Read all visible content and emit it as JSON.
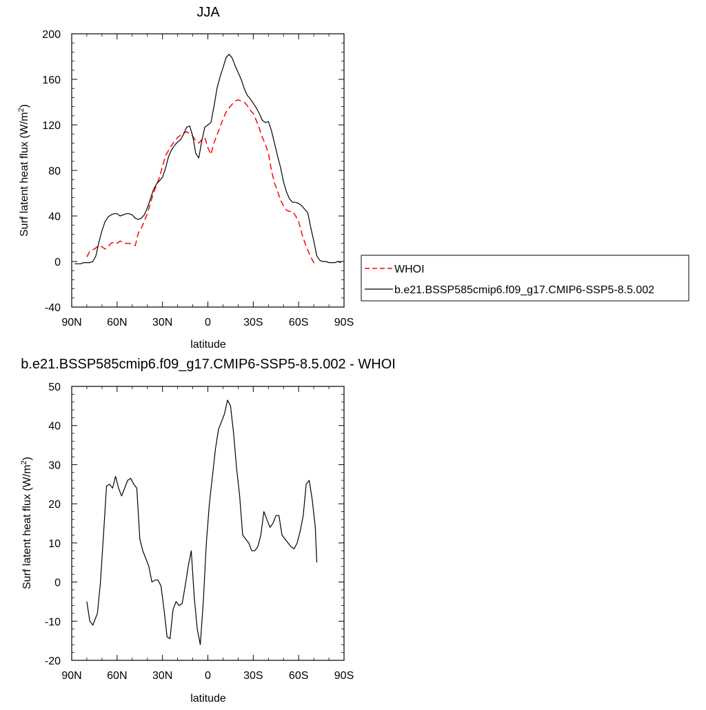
{
  "chart_data": [
    {
      "type": "line",
      "title": "JJA",
      "xlabel": "latitude",
      "ylabel": "Surf latent heat flux (W/m",
      "ylabel_sup": "2",
      "ylabel_close": ")",
      "xlim": [
        90,
        -90
      ],
      "ylim": [
        -40,
        200
      ],
      "x_ticks": [
        90,
        60,
        30,
        0,
        -30,
        -60,
        -90
      ],
      "x_tick_labels": [
        "90N",
        "60N",
        "30N",
        "0",
        "30S",
        "60S",
        "90S"
      ],
      "y_ticks": [
        -40,
        0,
        40,
        80,
        120,
        160,
        200
      ],
      "y_tick_labels": [
        "-40",
        "0",
        "40",
        "80",
        "120",
        "160",
        "200"
      ],
      "legend_position": "right",
      "series": [
        {
          "name": "WHOI",
          "color": "#ff0000",
          "dash": "dashed",
          "x": [
            80,
            78,
            75,
            72,
            70,
            68,
            66,
            64,
            62,
            60,
            58,
            55,
            52,
            48,
            46,
            44,
            40,
            36,
            32,
            28,
            24,
            20,
            18,
            16,
            14,
            12,
            10,
            8,
            6,
            4,
            2,
            0,
            -2,
            -4,
            -6,
            -8,
            -10,
            -12,
            -14,
            -16,
            -18,
            -20,
            -22,
            -24,
            -26,
            -28,
            -30,
            -32,
            -34,
            -36,
            -38,
            -40,
            -42,
            -44,
            -46,
            -48,
            -50,
            -52,
            -54,
            -56,
            -58,
            -60,
            -62,
            -64,
            -66,
            -68,
            -70,
            -72
          ],
          "y": [
            4,
            9,
            11,
            14,
            13,
            11,
            13,
            16,
            17,
            16,
            18,
            16,
            16,
            14,
            25,
            29,
            42,
            60,
            74,
            93,
            102,
            109,
            111,
            113,
            114,
            112,
            110,
            106,
            104,
            107,
            109,
            100,
            94,
            104,
            111,
            118,
            125,
            131,
            135,
            138,
            141,
            142,
            141,
            140,
            137,
            133,
            130,
            124,
            117,
            109,
            103,
            95,
            80,
            69,
            62,
            54,
            49,
            45,
            44,
            44,
            40,
            35,
            25,
            17,
            10,
            4,
            -1,
            -2
          ]
        },
        {
          "name": "b.e21.BSSP585cmip6.f09_g17.CMIP6-SSP5-8.5.002",
          "color": "#000000",
          "dash": "solid",
          "x": [
            88,
            86,
            84,
            82,
            80,
            78,
            76,
            74,
            72,
            70,
            68,
            66,
            64,
            62,
            60,
            58,
            56,
            54,
            52,
            50,
            48,
            46,
            44,
            42,
            40,
            38,
            36,
            34,
            32,
            30,
            28,
            26,
            24,
            22,
            20,
            18,
            16,
            14,
            12,
            10,
            8,
            6,
            4,
            2,
            0,
            -2,
            -4,
            -6,
            -8,
            -10,
            -12,
            -14,
            -16,
            -18,
            -20,
            -22,
            -24,
            -26,
            -28,
            -30,
            -32,
            -34,
            -36,
            -38,
            -40,
            -42,
            -44,
            -46,
            -48,
            -50,
            -52,
            -54,
            -56,
            -58,
            -60,
            -62,
            -64,
            -66,
            -68,
            -70,
            -72,
            -74,
            -76,
            -78,
            -80,
            -82,
            -84,
            -86,
            -88
          ],
          "y": [
            -2,
            -2,
            -2,
            -1,
            -1,
            -1,
            0,
            5,
            17,
            27,
            35,
            39,
            41,
            42,
            42,
            40,
            41,
            42,
            42,
            41,
            38,
            37,
            38,
            41,
            47,
            55,
            63,
            68,
            71,
            74,
            82,
            92,
            98,
            102,
            105,
            107,
            112,
            118,
            119,
            110,
            95,
            91,
            106,
            118,
            120,
            122,
            136,
            152,
            162,
            170,
            179,
            182,
            179,
            172,
            166,
            160,
            152,
            146,
            143,
            139,
            135,
            130,
            124,
            122,
            123,
            115,
            104,
            93,
            83,
            70,
            61,
            55,
            52,
            52,
            51,
            49,
            46,
            43,
            30,
            18,
            5,
            1,
            0,
            0,
            -1,
            -1,
            -1,
            0,
            -1
          ]
        }
      ]
    },
    {
      "type": "line",
      "title": "b.e21.BSSP585cmip6.f09_g17.CMIP6-SSP5-8.5.002 - WHOI",
      "xlabel": "latitude",
      "ylabel": "Surf latent heat flux (W/m",
      "ylabel_sup": "2",
      "ylabel_close": ")",
      "xlim": [
        90,
        -90
      ],
      "ylim": [
        -20,
        50
      ],
      "x_ticks": [
        90,
        60,
        30,
        0,
        -30,
        -60,
        -90
      ],
      "x_tick_labels": [
        "90N",
        "60N",
        "30N",
        "0",
        "30S",
        "60S",
        "90S"
      ],
      "y_ticks": [
        -20,
        -10,
        0,
        10,
        20,
        30,
        40,
        50
      ],
      "y_tick_labels": [
        "-20",
        "-10",
        "0",
        "10",
        "20",
        "30",
        "40",
        "50"
      ],
      "series": [
        {
          "color": "#000000",
          "dash": "solid",
          "x": [
            80,
            78,
            76,
            73,
            71,
            69,
            67,
            65,
            63,
            61,
            59,
            57,
            55,
            53,
            51,
            49,
            47,
            45,
            43,
            41,
            39,
            37,
            35,
            33,
            31,
            29,
            27,
            25,
            23,
            21,
            19,
            17,
            15,
            13,
            11,
            9,
            7,
            5,
            3,
            1,
            -1,
            -3,
            -5,
            -7,
            -9,
            -11,
            -13,
            -15,
            -17,
            -19,
            -21,
            -23,
            -25,
            -27,
            -29,
            -31,
            -33,
            -35,
            -37,
            -39,
            -41,
            -43,
            -45,
            -47,
            -49,
            -51,
            -53,
            -55,
            -57,
            -59,
            -61,
            -63,
            -65,
            -67,
            -69,
            -71,
            -72
          ],
          "y": [
            -5,
            -10,
            -11,
            -8,
            0,
            12,
            24.5,
            25,
            24,
            27,
            24,
            22,
            24,
            26,
            26.5,
            25,
            24,
            11,
            8,
            6,
            4,
            0,
            0.5,
            0.5,
            -1,
            -7,
            -14,
            -14.5,
            -7,
            -5,
            -6,
            -5.5,
            -1,
            4,
            8,
            -4,
            -12,
            -16,
            -5,
            10,
            20,
            27,
            34,
            39,
            41,
            43,
            46.5,
            45,
            38,
            29,
            22,
            12,
            11,
            10,
            8,
            8,
            9,
            12,
            18,
            16,
            14,
            15,
            17,
            17,
            12,
            11,
            10,
            9,
            8.5,
            10,
            13,
            17,
            25,
            26,
            21,
            14,
            5
          ]
        }
      ]
    }
  ]
}
